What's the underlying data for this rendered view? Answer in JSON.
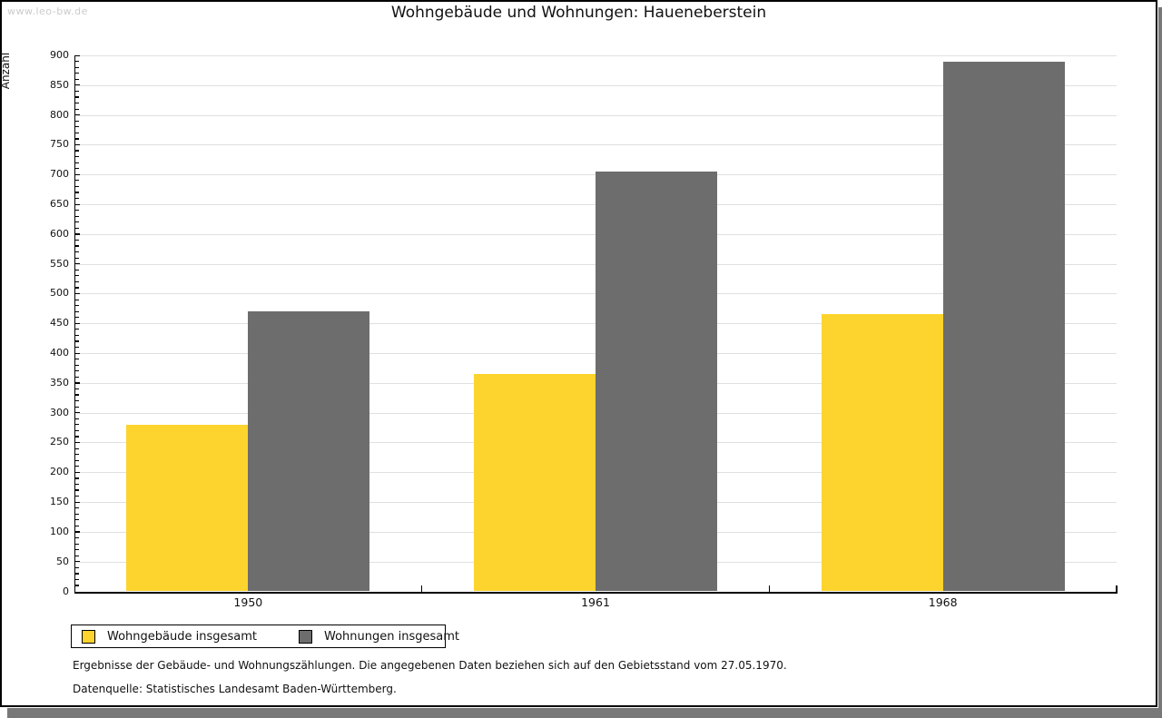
{
  "page": {
    "watermark": "www.leo-bw.de",
    "footer_line1": "Ergebnisse der Gebäude- und Wohnungszählungen. Die angegebenen Daten beziehen sich auf den Gebietsstand vom 27.05.1970.",
    "footer_line2": "Datenquelle: Statistisches Landesamt Baden-Württemberg."
  },
  "chart_data": {
    "type": "bar",
    "title": "Wohngebäude und Wohnungen: Haueneberstein",
    "xlabel": "",
    "ylabel": "Anzahl",
    "categories": [
      "1950",
      "1961",
      "1968"
    ],
    "series": [
      {
        "name": "Wohngebäude insgesamt",
        "color": "#FCD42D",
        "values": [
          280,
          365,
          465
        ]
      },
      {
        "name": "Wohnungen insgesamt",
        "color": "#6D6D6D",
        "values": [
          470,
          705,
          890
        ]
      }
    ],
    "ylim": [
      0,
      900
    ],
    "y_major_step": 50,
    "y_minor_step": 10,
    "grid": "horizontal-major",
    "legend_position": "bottom-left",
    "colors": {
      "grid": "#E0E0E0",
      "axis": "#000000",
      "text": "#111111",
      "watermark": "#CBCBCB",
      "background": "#FFFFFF",
      "shadow": "#787878"
    }
  }
}
